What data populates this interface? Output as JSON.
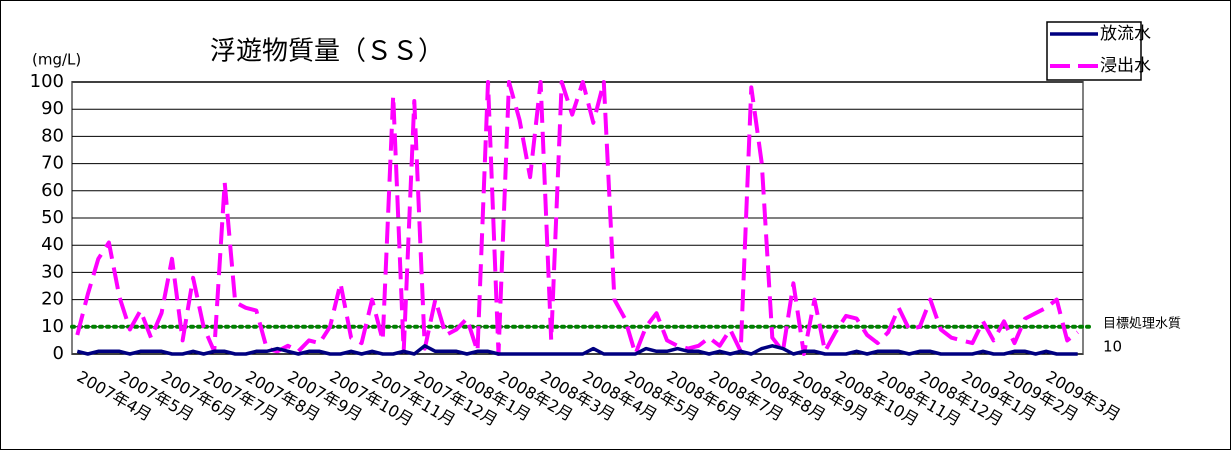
{
  "chart_data": {
    "type": "line",
    "title": "浮遊物質量（ＳＳ）",
    "unit": "(mg/L)",
    "categories": [
      "2007年4月",
      null,
      null,
      null,
      "2007年5月",
      null,
      null,
      null,
      "2007年6月",
      null,
      null,
      null,
      "2007年7月",
      null,
      null,
      null,
      "2007年8月",
      null,
      null,
      null,
      "2007年9月",
      null,
      null,
      null,
      "2007年10月",
      null,
      null,
      null,
      "2007年11月",
      null,
      null,
      null,
      "2007年12月",
      null,
      null,
      null,
      "2008年1月",
      null,
      null,
      null,
      "2008年2月",
      null,
      null,
      null,
      "2008年3月",
      null,
      null,
      null,
      "2008年4月",
      null,
      null,
      null,
      "2008年5月",
      null,
      null,
      null,
      "2008年6月",
      null,
      null,
      null,
      "2008年7月",
      null,
      null,
      null,
      "2008年8月",
      null,
      null,
      null,
      "2008年9月",
      null,
      null,
      null,
      "2008年10月",
      null,
      null,
      null,
      "2008年11月",
      null,
      null,
      null,
      "2008年12月",
      null,
      null,
      null,
      "2009年1月",
      null,
      null,
      null,
      "2009年2月",
      null,
      null,
      null,
      "2009年3月",
      null,
      null,
      null
    ],
    "series": [
      {
        "name": "放流水",
        "color": "#000080",
        "values": [
          1,
          0,
          1,
          1,
          1,
          0,
          1,
          1,
          1,
          0,
          0,
          1,
          0,
          1,
          1,
          0,
          0,
          1,
          1,
          2,
          1,
          0,
          1,
          1,
          0,
          0,
          1,
          0,
          1,
          0,
          0,
          1,
          0,
          3,
          1,
          1,
          1,
          0,
          1,
          1,
          0,
          0,
          0,
          0,
          0,
          0,
          0,
          0,
          0,
          2,
          0,
          0,
          0,
          0,
          2,
          1,
          1,
          2,
          1,
          1,
          0,
          1,
          0,
          1,
          0,
          2,
          3,
          2,
          0,
          1,
          1,
          0,
          0,
          0,
          1,
          0,
          1,
          1,
          1,
          0,
          1,
          1,
          0,
          0,
          0,
          0,
          1,
          0,
          0,
          1,
          1,
          0,
          1,
          0,
          0,
          0
        ]
      },
      {
        "name": "浸出水",
        "color": "#ff00ff",
        "dashed": true,
        "values": [
          7,
          22,
          35,
          41,
          21,
          9,
          16,
          6,
          15,
          35,
          5,
          28,
          10,
          1,
          63,
          19,
          17,
          16,
          2,
          1,
          3,
          1,
          5,
          4,
          10,
          26,
          6,
          4,
          20,
          5,
          95,
          1,
          93,
          2,
          20,
          7,
          9,
          13,
          1,
          100,
          0,
          100,
          86,
          65,
          100,
          5,
          100,
          88,
          100,
          85,
          100,
          20,
          13,
          0,
          10,
          15,
          5,
          3,
          2,
          3,
          6,
          3,
          9,
          1,
          98,
          70,
          6,
          1,
          26,
          0,
          20,
          1,
          8,
          14,
          13,
          7,
          4,
          8,
          17,
          9,
          10,
          20,
          9,
          6,
          5,
          4,
          12,
          5,
          12,
          4,
          13,
          15,
          17,
          20,
          5,
          8
        ]
      }
    ],
    "target": {
      "label": "目標処理水質",
      "value": 10,
      "color": "#008000"
    },
    "ylim": [
      0,
      100
    ],
    "yticks": [
      0,
      10,
      20,
      30,
      40,
      50,
      60,
      70,
      80,
      90,
      100
    ],
    "grid": true,
    "legend": "top-right"
  }
}
